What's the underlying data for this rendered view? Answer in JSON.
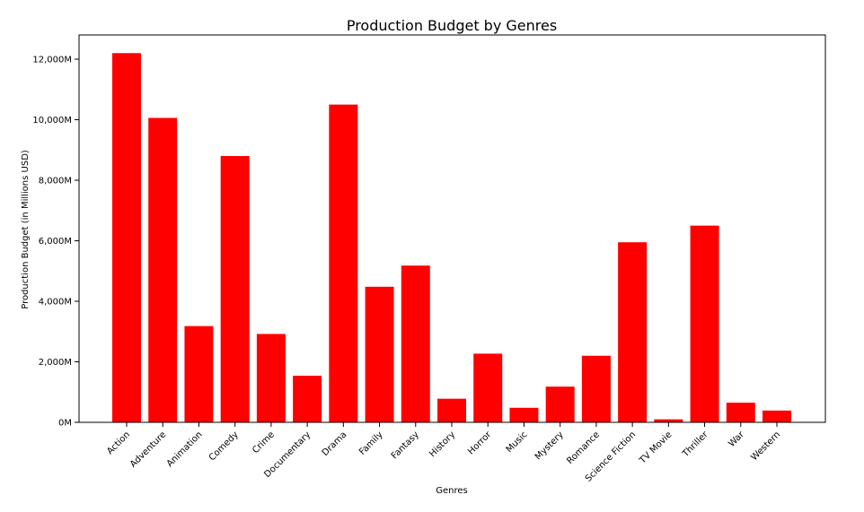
{
  "chart_data": {
    "type": "bar",
    "title": "Production Budget by Genres",
    "xlabel": "Genres",
    "ylabel": "Production Budget (in Millions USD)",
    "categories": [
      "Action",
      "Adventure",
      "Animation",
      "Comedy",
      "Crime",
      "Documentary",
      "Drama",
      "Family",
      "Fantasy",
      "History",
      "Horror",
      "Music",
      "Mystery",
      "Romance",
      "Science Fiction",
      "TV Movie",
      "Thriller",
      "War",
      "Western"
    ],
    "values": [
      12200,
      10060,
      3180,
      8800,
      2920,
      1540,
      10500,
      4480,
      5180,
      780,
      2270,
      480,
      1180,
      2200,
      5950,
      100,
      6500,
      650,
      390
    ],
    "ylim": [
      0,
      12800
    ],
    "yticks": [
      0,
      2000,
      4000,
      6000,
      8000,
      10000,
      12000
    ],
    "ytick_labels": [
      "0M",
      "2,000M",
      "4,000M",
      "6,000M",
      "8,000M",
      "10,000M",
      "12,000M"
    ],
    "bar_color": "#ff0000",
    "grid": false,
    "legend": null
  }
}
